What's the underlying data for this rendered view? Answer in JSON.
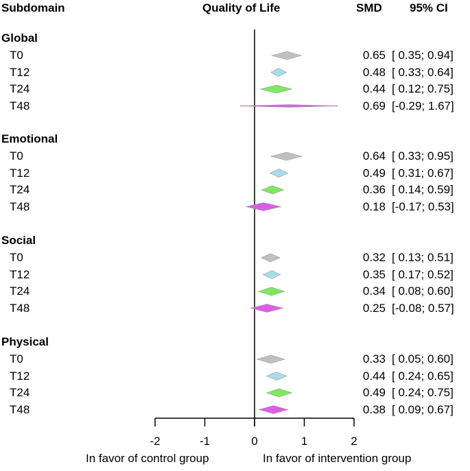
{
  "chart_data": {
    "type": "forest",
    "title": "Quality of Life",
    "headers": {
      "subdomain": "Subdomain",
      "title": "Quality of Life",
      "smd": "SMD",
      "ci": "95% CI"
    },
    "xlim": [
      -2,
      2
    ],
    "xticks": [
      "-2",
      "-1",
      "0",
      "1",
      "2"
    ],
    "xlabel_left": "In favor of control group",
    "xlabel_right": "In favor of intervention group",
    "colors": {
      "T0": "#c0c0c0",
      "T12": "#a9dceb",
      "T24": "#7ee860",
      "T48": "#dc5ee6"
    },
    "groups": [
      {
        "name": "Global",
        "rows": [
          {
            "label": "T0",
            "smd": 0.65,
            "lo": 0.35,
            "hi": 0.94,
            "smd_text": "0.65",
            "ci_text": "[ 0.35; 0.94]"
          },
          {
            "label": "T12",
            "smd": 0.48,
            "lo": 0.33,
            "hi": 0.64,
            "smd_text": "0.48",
            "ci_text": "[ 0.33; 0.64]"
          },
          {
            "label": "T24",
            "smd": 0.44,
            "lo": 0.12,
            "hi": 0.75,
            "smd_text": "0.44",
            "ci_text": "[ 0.12; 0.75]"
          },
          {
            "label": "T48",
            "smd": 0.69,
            "lo": -0.29,
            "hi": 1.67,
            "smd_text": "0.69",
            "ci_text": "[-0.29; 1.67]"
          }
        ]
      },
      {
        "name": "Emotional",
        "rows": [
          {
            "label": "T0",
            "smd": 0.64,
            "lo": 0.33,
            "hi": 0.95,
            "smd_text": "0.64",
            "ci_text": "[ 0.33; 0.95]"
          },
          {
            "label": "T12",
            "smd": 0.49,
            "lo": 0.31,
            "hi": 0.67,
            "smd_text": "0.49",
            "ci_text": "[ 0.31; 0.67]"
          },
          {
            "label": "T24",
            "smd": 0.36,
            "lo": 0.14,
            "hi": 0.59,
            "smd_text": "0.36",
            "ci_text": "[ 0.14; 0.59]"
          },
          {
            "label": "T48",
            "smd": 0.18,
            "lo": -0.17,
            "hi": 0.53,
            "smd_text": "0.18",
            "ci_text": "[-0.17; 0.53]"
          }
        ]
      },
      {
        "name": "Social",
        "rows": [
          {
            "label": "T0",
            "smd": 0.32,
            "lo": 0.13,
            "hi": 0.51,
            "smd_text": "0.32",
            "ci_text": "[ 0.13; 0.51]"
          },
          {
            "label": "T12",
            "smd": 0.35,
            "lo": 0.17,
            "hi": 0.52,
            "smd_text": "0.35",
            "ci_text": "[ 0.17; 0.52]"
          },
          {
            "label": "T24",
            "smd": 0.34,
            "lo": 0.08,
            "hi": 0.6,
            "smd_text": "0.34",
            "ci_text": "[ 0.08; 0.60]"
          },
          {
            "label": "T48",
            "smd": 0.25,
            "lo": -0.08,
            "hi": 0.57,
            "smd_text": "0.25",
            "ci_text": "[-0.08; 0.57]"
          }
        ]
      },
      {
        "name": "Physical",
        "rows": [
          {
            "label": "T0",
            "smd": 0.33,
            "lo": 0.05,
            "hi": 0.6,
            "smd_text": "0.33",
            "ci_text": "[ 0.05; 0.60]"
          },
          {
            "label": "T12",
            "smd": 0.44,
            "lo": 0.24,
            "hi": 0.65,
            "smd_text": "0.44",
            "ci_text": "[ 0.24; 0.65]"
          },
          {
            "label": "T24",
            "smd": 0.49,
            "lo": 0.24,
            "hi": 0.75,
            "smd_text": "0.49",
            "ci_text": "[ 0.24; 0.75]"
          },
          {
            "label": "T48",
            "smd": 0.38,
            "lo": 0.09,
            "hi": 0.67,
            "smd_text": "0.38",
            "ci_text": "[ 0.09; 0.67]"
          }
        ]
      }
    ]
  }
}
